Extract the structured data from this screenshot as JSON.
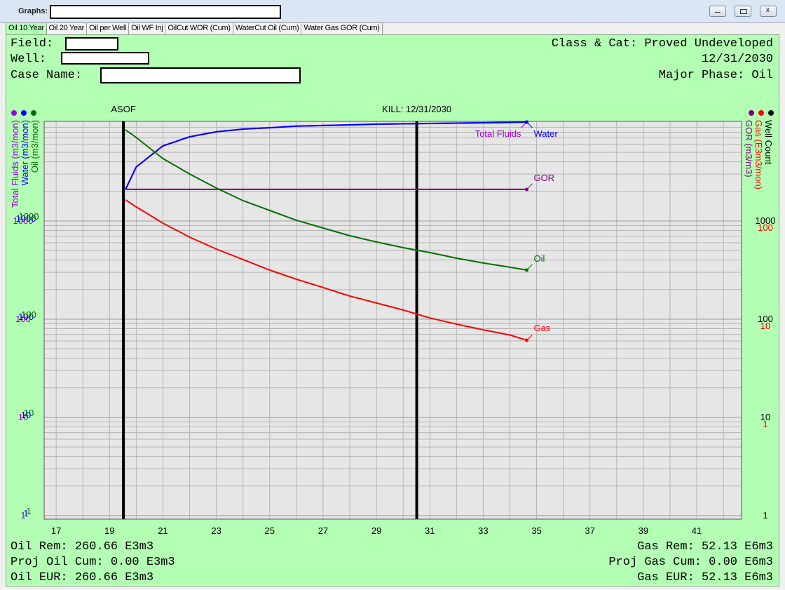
{
  "window": {
    "graphs_label": "Graphs:",
    "tabs": [
      "Oil 10 Year",
      "Oil 20 Year",
      "Oil per Well",
      "Oil WF Inj",
      "OilCut WOR (Cum)",
      "WaterCut Oil (Cum)",
      "Water Gas GOR (Cum)"
    ],
    "active_tab": 0
  },
  "header": {
    "field_label": "Field:",
    "well_label": "Well:",
    "case_name_label": "Case Name:",
    "class_cat": "Class & Cat: Proved Undeveloped",
    "date": "12/31/2030",
    "major_phase": "Major Phase: Oil"
  },
  "footer": {
    "oil_rem": "Oil Rem: 260.66 E3m3",
    "proj_oil_cum": "Proj Oil Cum: 0.00 E3m3",
    "oil_eur": "Oil EUR: 260.66 E3m3",
    "gas_rem": "Gas Rem: 52.13 E6m3",
    "proj_gas_cum": "Proj Gas Cum: 0.00 E6m3",
    "gas_eur": "Gas EUR: 52.13 E6m3"
  },
  "chart_data": {
    "type": "line",
    "log_scale": true,
    "grid": true,
    "ylabels": [
      "Total Fluids (m3/mon)",
      "Water (m3/mon)",
      "Oil (m3/mon)"
    ],
    "ylabel_colors": [
      "#9b00e0",
      "#0000ff",
      "#007000"
    ],
    "y2labels": [
      "GOR (m3/m3)",
      "Gas (E3m3/mon)",
      "Well Count"
    ],
    "y2label_colors": [
      "#800080",
      "#ff0000",
      "#000000"
    ],
    "vlines": [
      {
        "label": "ASOF",
        "x": 19.52
      },
      {
        "label": "KILL: 12/31/2030",
        "x": 30.51
      }
    ],
    "x": [
      19.6,
      20,
      21,
      22,
      23,
      24,
      25,
      26,
      27,
      28,
      29,
      30,
      31,
      32,
      33,
      34,
      34.63
    ],
    "xlim": [
      16.55,
      42.68
    ],
    "xticks": [
      17,
      19,
      21,
      23,
      25,
      27,
      29,
      31,
      33,
      35,
      37,
      39,
      41
    ],
    "xminorticks": [
      18,
      20,
      22,
      24,
      26,
      28,
      30,
      32,
      34,
      36,
      38,
      40,
      42
    ],
    "ylim": [
      0.92,
      10330
    ],
    "yticks": [
      1,
      10,
      100,
      1000
    ],
    "yminorticks": [
      2,
      3,
      4,
      5,
      6,
      7,
      8,
      9,
      20,
      30,
      40,
      50,
      60,
      70,
      80,
      90,
      200,
      300,
      400,
      500,
      600,
      700,
      800,
      900,
      2000,
      3000,
      4000,
      5000,
      6000,
      7000,
      8000,
      9000
    ],
    "y2lim": [
      0.092,
      1033
    ],
    "y2ticks": [
      1,
      10,
      100
    ],
    "series": [
      {
        "name": "Total Fluids",
        "color": "#9b00e0",
        "values": [
          2097,
          3549,
          5819,
          7197,
          8084,
          8621,
          8894,
          9237,
          9368,
          9521,
          9676,
          9754,
          9833,
          9913,
          10000,
          10079,
          10163
        ]
      },
      {
        "name": "Water",
        "color": "#0000ff",
        "values": [
          2097,
          3549,
          5819,
          7197,
          8084,
          8621,
          8894,
          9237,
          9368,
          9521,
          9676,
          9754,
          9833,
          9913,
          10000,
          10079,
          10163
        ]
      },
      {
        "name": "GOR",
        "color": "#800080",
        "values": [
          2097,
          2097,
          2097,
          2097,
          2097,
          2097,
          2097,
          2097,
          2097,
          2097,
          2097,
          2097,
          2097,
          2097,
          2097,
          2097,
          2097
        ]
      },
      {
        "name": "Oil",
        "color": "#007000",
        "values": [
          8483,
          7079,
          4322,
          3010,
          2166,
          1611,
          1280,
          1017,
          848,
          708,
          611,
          535,
          477,
          418,
          373,
          338,
          316
        ]
      },
      {
        "name": "Gas",
        "color": "#ff0000",
        "axis": "y2",
        "values": [
          164,
          139,
          95,
          68.5,
          51.8,
          40.5,
          31.6,
          25.5,
          21.0,
          17.2,
          14.6,
          12.4,
          10.3,
          8.9,
          7.8,
          6.9,
          6.1
        ]
      }
    ]
  }
}
